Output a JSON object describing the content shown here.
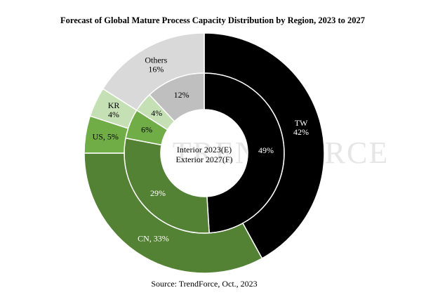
{
  "chart_data": {
    "type": "donut",
    "title": "Forecast of Global Mature Process Capacity Distribution by Region, 2023 to 2027",
    "source": "Source: TrendForce, Oct., 2023",
    "watermark": "TRENDFORCE",
    "series": [
      {
        "name": "Interior  2023(E)",
        "ring": "inner",
        "values": [
          49,
          29,
          6,
          4,
          12
        ],
        "value_labels": [
          "49%",
          "29%",
          "6%",
          "4%",
          "12%"
        ],
        "colors": [
          "#000000",
          "#548235",
          "#70ad47",
          "#c5e0b4",
          "#bfbfbf"
        ]
      },
      {
        "name": "Exterior 2027(F)",
        "ring": "outer",
        "values": [
          42,
          33,
          5,
          4,
          16
        ],
        "value_labels": [
          "TW\n42%",
          "CN, 33%",
          "US, 5%",
          "KR\n4%",
          "Others\n16%"
        ],
        "colors": [
          "#000000",
          "#548235",
          "#70ad47",
          "#c5e0b4",
          "#d9d9d9"
        ]
      }
    ]
  }
}
